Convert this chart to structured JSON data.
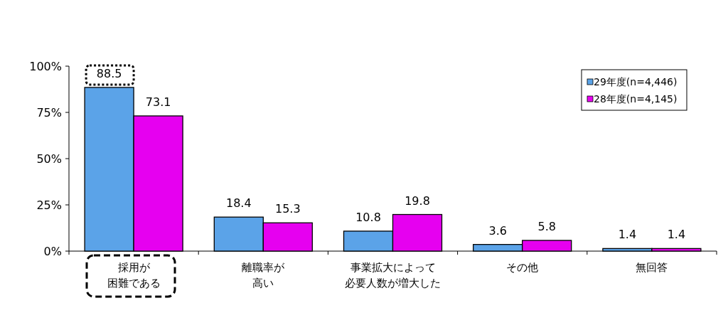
{
  "chart_data": {
    "type": "bar",
    "categories": [
      "採用が困難である",
      "離職率が高い",
      "事業拡大によって必要人数が増大した",
      "その他",
      "無回答"
    ],
    "series": [
      {
        "name": "29年度(n=4,446)",
        "color": "#5ba3e8",
        "values": [
          88.5,
          18.4,
          10.8,
          3.6,
          1.4
        ]
      },
      {
        "name": "28年度(n=4,145)",
        "color": "#e600f0",
        "values": [
          73.1,
          15.3,
          19.8,
          5.8,
          1.4
        ]
      }
    ],
    "ylim": [
      0,
      100
    ],
    "yticks": [
      {
        "value": 0,
        "label": "0%"
      },
      {
        "value": 25,
        "label": "25%"
      },
      {
        "value": 50,
        "label": "50%"
      },
      {
        "value": 75,
        "label": "75%"
      },
      {
        "value": 100,
        "label": "100%"
      }
    ],
    "data_labels": true,
    "legend": "top right"
  }
}
